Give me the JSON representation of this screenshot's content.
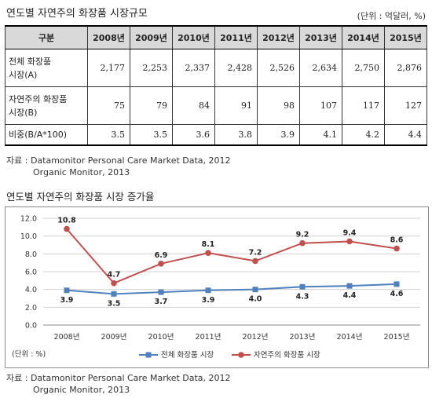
{
  "table": {
    "title": "연도별 자연주의 화장품 시장규모",
    "unit": "(단위 : 억달러, %)",
    "header": [
      "구분",
      "2008년",
      "2009년",
      "2010년",
      "2011년",
      "2012년",
      "2013년",
      "2014년",
      "2015년"
    ],
    "rows": [
      {
        "label_line1": "전체 화장품",
        "label_line2": "시장(A)",
        "values": [
          "2,177",
          "2,253",
          "2,337",
          "2,428",
          "2,526",
          "2,634",
          "2,750",
          "2,876"
        ]
      },
      {
        "label_line1": "자연주의 화장품",
        "label_line2": "시장(B)",
        "values": [
          "75",
          "79",
          "84",
          "91",
          "98",
          "107",
          "117",
          "127"
        ]
      },
      {
        "label_line1": "비중(B/A*100)",
        "label_line2": "",
        "values": [
          "3.5",
          "3.5",
          "3.6",
          "3.8",
          "3.9",
          "4.1",
          "4.2",
          "4.4"
        ]
      }
    ],
    "source_line1": "자료 : Datamonitor Personal Care Market Data, 2012",
    "source_line2": "Organic Monitor, 2013"
  },
  "chart_title": "연도별 자연주의 화장품 시장 증가율",
  "chart_data": {
    "type": "line",
    "categories": [
      "2008년",
      "2009년",
      "2010년",
      "2011년",
      "2012년",
      "2013년",
      "2014년",
      "2015년"
    ],
    "series": [
      {
        "name": "전체 화장품 시장",
        "color": "#4f81bd",
        "marker": "square",
        "values": [
          3.9,
          3.5,
          3.7,
          3.9,
          4.0,
          4.3,
          4.4,
          4.6
        ],
        "labels": [
          "3.9",
          "3.5",
          "3.7",
          "3.9",
          "4.0",
          "4.3",
          "4.4",
          "4.6"
        ]
      },
      {
        "name": "자연주의 화장품 시장",
        "color": "#c0504d",
        "marker": "circle",
        "values": [
          10.8,
          4.7,
          6.9,
          8.1,
          7.2,
          9.2,
          9.4,
          8.6
        ],
        "labels": [
          "10.8",
          "4.7",
          "6.9",
          "8.1",
          "7.2",
          "9.2",
          "9.4",
          "8.6"
        ]
      }
    ],
    "yticks": [
      "0.0",
      "2.0",
      "4.0",
      "6.0",
      "8.0",
      "10.0",
      "12.0"
    ],
    "ylim": [
      0,
      12
    ],
    "grid": true,
    "legend": "bottom",
    "unit_note": "(단위 : %)"
  },
  "chart_source_line1": "자료 : Datamonitor Personal Care Market Data, 2012",
  "chart_source_line2": "Organic Monitor, 2013"
}
